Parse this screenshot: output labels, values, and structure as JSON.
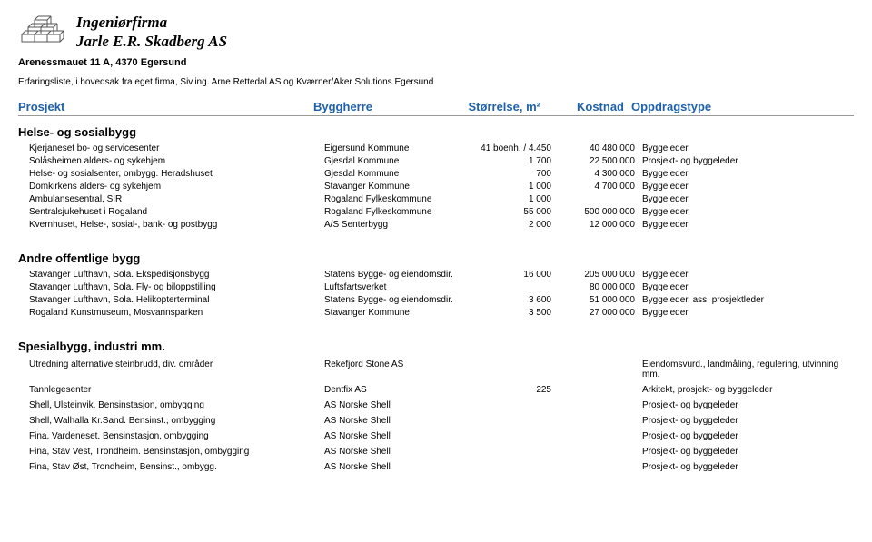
{
  "company": {
    "line1": "Ingeniørfirma",
    "line2": "Jarle E.R. Skadberg AS"
  },
  "address": "Arenessmauet 11 A, 4370 Egersund",
  "subtitle": "Erfaringsliste, i hovedsak fra eget firma, Siv.ing. Arne Rettedal AS og Kværner/Aker Solutions Egersund",
  "headers": {
    "c1": "Prosjekt",
    "c2": "Byggherre",
    "c3": "Størrelse, m²",
    "c4": "Kostnad",
    "c5": "Oppdragstype"
  },
  "sections": [
    {
      "title": "Helse- og sosialbygg",
      "spaced": false,
      "rows": [
        {
          "c1": "Kjerjaneset bo- og servicesenter",
          "c2": "Eigersund Kommune",
          "c3": "41 boenh. / 4.450",
          "c4": "40 480 000",
          "c5": "Byggeleder"
        },
        {
          "c1": "Solåsheimen alders- og sykehjem",
          "c2": "Gjesdal Kommune",
          "c3": "1 700",
          "c4": "22 500 000",
          "c5": "Prosjekt- og byggeleder"
        },
        {
          "c1": "Helse- og sosialsenter, ombygg. Heradshuset",
          "c2": "Gjesdal Kommune",
          "c3": "700",
          "c4": "4 300 000",
          "c5": "Byggeleder"
        },
        {
          "c1": "Domkirkens alders- og sykehjem",
          "c2": "Stavanger Kommune",
          "c3": "1 000",
          "c4": "4 700 000",
          "c5": "Byggeleder"
        },
        {
          "c1": "Ambulansesentral, SIR",
          "c2": "Rogaland Fylkeskommune",
          "c3": "1 000",
          "c4": "",
          "c5": "Byggeleder"
        },
        {
          "c1": "Sentralsjukehuset i Rogaland",
          "c2": "Rogaland Fylkeskommune",
          "c3": "55 000",
          "c4": "500 000 000",
          "c5": "Byggeleder"
        },
        {
          "c1": "Kvernhuset, Helse-, sosial-, bank- og postbygg",
          "c2": "A/S Senterbygg",
          "c3": "2 000",
          "c4": "12 000 000",
          "c5": "Byggeleder"
        }
      ]
    },
    {
      "title": "Andre offentlige bygg",
      "spaced": false,
      "rows": [
        {
          "c1": "Stavanger Lufthavn, Sola. Ekspedisjonsbygg",
          "c2": "Statens Bygge- og eiendomsdir.",
          "c3": "16 000",
          "c4": "205 000 000",
          "c5": "Byggeleder"
        },
        {
          "c1": "Stavanger Lufthavn, Sola. Fly- og biloppstilling",
          "c2": "Luftsfartsverket",
          "c3": "",
          "c4": "80 000 000",
          "c5": "Byggeleder"
        },
        {
          "c1": "Stavanger Lufthavn, Sola. Helikopterterminal",
          "c2": "Statens Bygge- og eiendomsdir.",
          "c3": "3 600",
          "c4": "51 000 000",
          "c5": "Byggeleder, ass. prosjektleder"
        },
        {
          "c1": "Rogaland Kunstmuseum, Mosvannsparken",
          "c2": "Stavanger Kommune",
          "c3": "3 500",
          "c4": "27 000 000",
          "c5": "Byggeleder"
        }
      ]
    },
    {
      "title": "Spesialbygg, industri mm.",
      "spaced": true,
      "rows": [
        {
          "c1": "Utredning alternative steinbrudd, div. områder",
          "c2": "Rekefjord Stone AS",
          "c3": "",
          "c4": "",
          "c5": "Eiendomsvurd., landmåling, regulering, utvinning mm."
        },
        {
          "c1": "Tannlegesenter",
          "c2": "Dentfix AS",
          "c3": "225",
          "c4": "",
          "c5": "Arkitekt, prosjekt- og byggeleder"
        },
        {
          "c1": "Shell, Ulsteinvik. Bensinstasjon, ombygging",
          "c2": "AS Norske Shell",
          "c3": "",
          "c4": "",
          "c5": "Prosjekt- og byggeleder"
        },
        {
          "c1": "Shell, Walhalla Kr.Sand. Bensinst., ombygging",
          "c2": "AS Norske Shell",
          "c3": "",
          "c4": "",
          "c5": "Prosjekt- og byggeleder"
        },
        {
          "c1": "Fina, Vardeneset. Bensinstasjon, ombygging",
          "c2": "AS Norske Shell",
          "c3": "",
          "c4": "",
          "c5": "Prosjekt- og byggeleder"
        },
        {
          "c1": "Fina, Stav Vest, Trondheim. Bensinstasjon, ombygging",
          "c2": "AS Norske Shell",
          "c3": "",
          "c4": "",
          "c5": "Prosjekt- og byggeleder"
        },
        {
          "c1": "Fina, Stav Øst, Trondheim, Bensinst., ombygg.",
          "c2": "AS Norske Shell",
          "c3": "",
          "c4": "",
          "c5": "Prosjekt- og byggeleder"
        }
      ]
    }
  ]
}
